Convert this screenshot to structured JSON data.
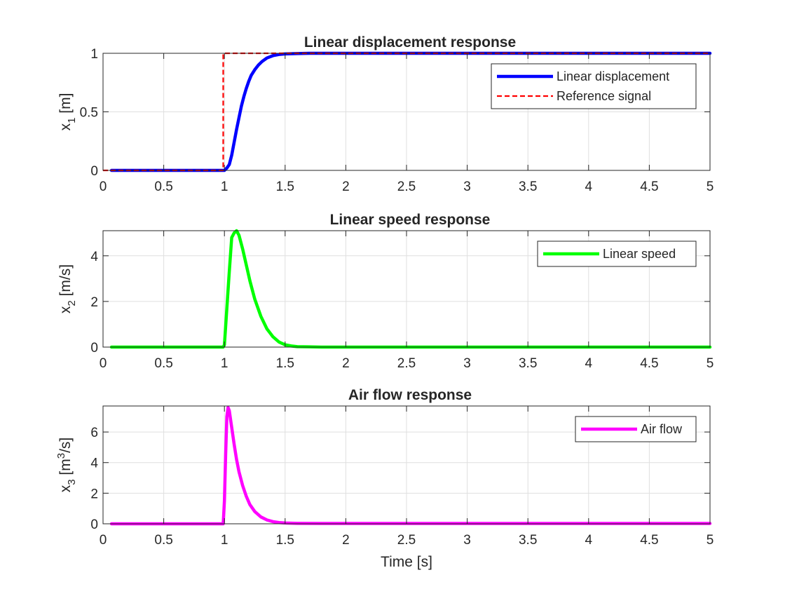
{
  "figure": {
    "xlabel": "Time [s]"
  },
  "chart_data": [
    {
      "type": "line",
      "title": "Linear displacement response",
      "ylabel": {
        "base": "x",
        "sub": "1",
        "unit": " [m]"
      },
      "xlim": [
        0,
        5
      ],
      "ylim": [
        0,
        1
      ],
      "xticks": [
        0,
        0.5,
        1,
        1.5,
        2,
        2.5,
        3,
        3.5,
        4,
        4.5,
        5
      ],
      "yticks": [
        0,
        0.5,
        1
      ],
      "grid": true,
      "legend_position": "top-right",
      "series": [
        {
          "name": "Linear displacement",
          "color": "#0000ff",
          "style": "solid",
          "x": [
            0.07,
            0.99,
            1.0,
            1.02,
            1.04,
            1.06,
            1.08,
            1.1,
            1.12,
            1.14,
            1.16,
            1.18,
            1.2,
            1.22,
            1.25,
            1.28,
            1.31,
            1.35,
            1.4,
            1.45,
            1.5,
            1.6,
            1.7,
            1.8,
            2.0,
            2.5,
            3.0,
            4.0,
            5.0
          ],
          "y": [
            0,
            0,
            0,
            0.02,
            0.05,
            0.13,
            0.24,
            0.35,
            0.45,
            0.55,
            0.63,
            0.7,
            0.76,
            0.81,
            0.86,
            0.9,
            0.93,
            0.96,
            0.98,
            0.99,
            0.995,
            0.998,
            1,
            1,
            1,
            1,
            1,
            1,
            1
          ]
        },
        {
          "name": "Reference signal",
          "color": "#ff0000",
          "style": "dashed",
          "x": [
            0,
            0.99,
            0.99,
            5.0
          ],
          "y": [
            0,
            0,
            1,
            1
          ]
        }
      ]
    },
    {
      "type": "line",
      "title": "Linear speed response",
      "ylabel": {
        "base": "x",
        "sub": "2",
        "unit": " [m/s]"
      },
      "xlim": [
        0,
        5
      ],
      "ylim": [
        0,
        5.1
      ],
      "xticks": [
        0,
        0.5,
        1,
        1.5,
        2,
        2.5,
        3,
        3.5,
        4,
        4.5,
        5
      ],
      "yticks": [
        0,
        2,
        4
      ],
      "grid": true,
      "legend_position": "top-right",
      "series": [
        {
          "name": "Linear speed",
          "color": "#00ff00",
          "style": "solid",
          "x": [
            0.07,
            0.99,
            1.0,
            1.02,
            1.04,
            1.06,
            1.08,
            1.1,
            1.12,
            1.15,
            1.18,
            1.21,
            1.25,
            1.3,
            1.35,
            1.4,
            1.45,
            1.5,
            1.55,
            1.6,
            1.7,
            1.8,
            2.0,
            3.0,
            4.0,
            5.0
          ],
          "y": [
            0,
            0,
            0.1,
            1.7,
            3.3,
            4.8,
            5.0,
            5.1,
            4.9,
            4.3,
            3.6,
            2.9,
            2.1,
            1.35,
            0.8,
            0.45,
            0.22,
            0.1,
            0.05,
            0.02,
            0.01,
            0,
            0,
            0,
            0,
            0
          ]
        }
      ]
    },
    {
      "type": "line",
      "title": "Air flow response",
      "ylabel": {
        "base": "x",
        "sub": "3",
        "unit": " [m",
        "sup": "3",
        "unit_end": "/s]"
      },
      "xlim": [
        0,
        5
      ],
      "ylim": [
        0,
        7.7
      ],
      "xticks": [
        0,
        0.5,
        1,
        1.5,
        2,
        2.5,
        3,
        3.5,
        4,
        4.5,
        5
      ],
      "yticks": [
        0,
        2,
        4,
        6
      ],
      "grid": true,
      "legend_position": "top-right",
      "series": [
        {
          "name": "Air flow",
          "color": "#ff00ff",
          "style": "solid",
          "x": [
            0.07,
            0.99,
            1.0,
            1.01,
            1.02,
            1.03,
            1.04,
            1.06,
            1.08,
            1.1,
            1.12,
            1.15,
            1.18,
            1.21,
            1.25,
            1.3,
            1.35,
            1.4,
            1.45,
            1.5,
            1.6,
            1.8,
            2.0,
            3.0,
            4.0,
            5.0
          ],
          "y": [
            0,
            0,
            1.5,
            4.5,
            7.0,
            7.6,
            7.4,
            6.3,
            5.2,
            4.2,
            3.4,
            2.5,
            1.8,
            1.25,
            0.8,
            0.45,
            0.25,
            0.14,
            0.08,
            0.05,
            0.03,
            0.02,
            0.02,
            0.02,
            0.02,
            0.02
          ]
        }
      ]
    }
  ]
}
